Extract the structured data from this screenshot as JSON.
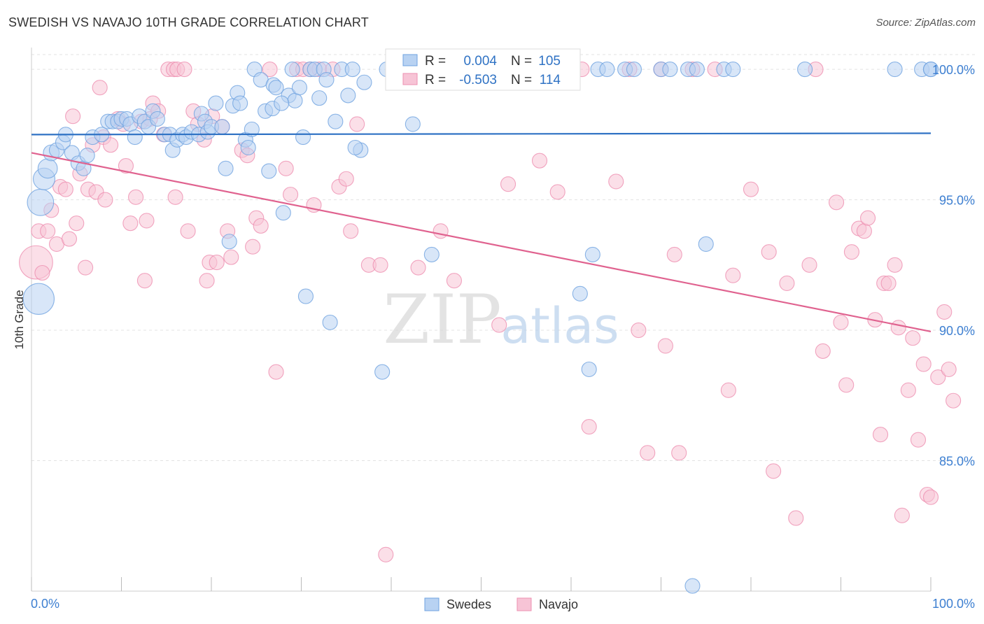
{
  "title": "SWEDISH VS NAVAJO 10TH GRADE CORRELATION CHART",
  "source": "Source: ZipAtlas.com",
  "watermark": {
    "zip": "ZIP",
    "atlas": "atlas"
  },
  "chart_data": {
    "type": "scatter",
    "title": "SWEDISH VS NAVAJO 10TH GRADE CORRELATION CHART",
    "xlabel": "",
    "ylabel": "10th Grade",
    "xlim": [
      0,
      100
    ],
    "ylim": [
      80.0,
      100.7
    ],
    "x_tick_labels": [
      "0.0%",
      "100.0%"
    ],
    "y_ticks": [
      85,
      90,
      95,
      100
    ],
    "y_tick_labels": [
      "85.0%",
      "90.0%",
      "95.0%",
      "100.0%"
    ],
    "grid": true,
    "legend_position": "top-center",
    "stats": [
      {
        "r_label": "R =",
        "r_value": "0.004",
        "n_label": "N =",
        "n_value": "105"
      },
      {
        "r_label": "R =",
        "r_value": "-0.503",
        "n_label": "N =",
        "n_value": "114"
      }
    ],
    "series": [
      {
        "name": "Swedes",
        "color": "#6fa3e0",
        "fill": "#b8d2f2",
        "trend": {
          "x": [
            0,
            100
          ],
          "y": [
            97.5,
            97.55
          ],
          "color": "#2f72c4"
        },
        "points": [
          [
            0.8,
            91.2,
            26
          ],
          [
            1.0,
            94.9,
            22
          ],
          [
            1.4,
            95.8,
            18
          ],
          [
            1.8,
            96.2,
            16
          ],
          [
            2.2,
            96.8,
            13
          ],
          [
            2.8,
            96.9,
            12
          ],
          [
            3.5,
            97.2,
            12
          ],
          [
            3.8,
            97.5,
            12
          ],
          [
            4.5,
            96.8,
            12
          ],
          [
            5.2,
            96.4,
            12
          ],
          [
            5.8,
            96.2,
            12
          ],
          [
            6.2,
            96.7,
            12
          ],
          [
            6.8,
            97.4,
            12
          ],
          [
            7.8,
            97.5,
            12
          ],
          [
            8.5,
            98.0,
            12
          ],
          [
            9.0,
            98.0,
            12
          ],
          [
            9.6,
            98.0,
            12
          ],
          [
            10.0,
            98.1,
            12
          ],
          [
            10.6,
            98.1,
            12
          ],
          [
            11.0,
            97.9,
            12
          ],
          [
            11.5,
            97.4,
            12
          ],
          [
            12.0,
            98.2,
            12
          ],
          [
            12.6,
            98.0,
            12
          ],
          [
            13.0,
            97.8,
            12
          ],
          [
            13.5,
            98.4,
            12
          ],
          [
            14.0,
            98.1,
            12
          ],
          [
            14.8,
            97.5,
            12
          ],
          [
            15.4,
            97.5,
            12
          ],
          [
            15.7,
            96.9,
            12
          ],
          [
            16.2,
            97.3,
            12
          ],
          [
            16.8,
            97.5,
            12
          ],
          [
            17.2,
            97.4,
            12
          ],
          [
            17.8,
            97.6,
            12
          ],
          [
            18.6,
            97.5,
            12
          ],
          [
            18.9,
            98.3,
            12
          ],
          [
            19.3,
            98.0,
            12
          ],
          [
            19.6,
            97.6,
            12
          ],
          [
            20.0,
            97.8,
            12
          ],
          [
            20.5,
            98.7,
            12
          ],
          [
            21.2,
            97.8,
            12
          ],
          [
            21.6,
            96.2,
            12
          ],
          [
            22.0,
            93.4,
            12
          ],
          [
            22.4,
            98.6,
            12
          ],
          [
            22.9,
            99.1,
            12
          ],
          [
            23.2,
            98.7,
            12
          ],
          [
            23.8,
            97.3,
            12
          ],
          [
            24.1,
            97.0,
            12
          ],
          [
            24.5,
            97.7,
            12
          ],
          [
            24.8,
            100.0,
            12
          ],
          [
            25.5,
            99.6,
            12
          ],
          [
            26.0,
            98.4,
            12
          ],
          [
            26.4,
            96.1,
            12
          ],
          [
            26.9,
            99.4,
            12
          ],
          [
            27.2,
            99.3,
            12
          ],
          [
            28.0,
            94.5,
            12
          ],
          [
            28.6,
            99.0,
            12
          ],
          [
            29.0,
            100.0,
            12
          ],
          [
            29.3,
            98.8,
            12
          ],
          [
            29.8,
            99.3,
            12
          ],
          [
            30.5,
            91.3,
            12
          ],
          [
            31.0,
            100.0,
            12
          ],
          [
            31.5,
            100.0,
            12
          ],
          [
            32.0,
            98.9,
            12
          ],
          [
            32.5,
            100.0,
            12
          ],
          [
            32.8,
            99.6,
            12
          ],
          [
            33.2,
            90.3,
            12
          ],
          [
            33.8,
            98.0,
            12
          ],
          [
            34.5,
            100.0,
            12
          ],
          [
            35.2,
            99.0,
            12
          ],
          [
            35.7,
            100.0,
            12
          ],
          [
            36.6,
            96.9,
            12
          ],
          [
            37.0,
            99.5,
            12
          ],
          [
            39.0,
            88.4,
            12
          ],
          [
            39.5,
            100.0,
            12
          ],
          [
            40.5,
            100.0,
            12
          ],
          [
            41.2,
            100.0,
            12
          ],
          [
            42.0,
            100.0,
            12
          ],
          [
            42.4,
            97.9,
            12
          ],
          [
            43.8,
            100.0,
            12
          ],
          [
            44.5,
            92.9,
            12
          ],
          [
            47.0,
            100.0,
            12
          ],
          [
            48.5,
            100.0,
            12
          ],
          [
            49.0,
            100.0,
            12
          ],
          [
            50.0,
            100.0,
            12
          ],
          [
            52.0,
            100.0,
            12
          ],
          [
            53.0,
            100.0,
            12
          ],
          [
            56.5,
            100.0,
            12
          ],
          [
            58.0,
            100.0,
            12
          ],
          [
            60.0,
            100.0,
            12
          ],
          [
            61.0,
            91.4,
            12
          ],
          [
            62.0,
            88.5,
            12
          ],
          [
            62.4,
            92.9,
            12
          ],
          [
            63.0,
            100.0,
            12
          ],
          [
            64.0,
            100.0,
            12
          ],
          [
            66.0,
            100.0,
            12
          ],
          [
            67.0,
            100.0,
            12
          ],
          [
            70.0,
            100.0,
            12
          ],
          [
            71.0,
            100.0,
            12
          ],
          [
            73.0,
            100.0,
            12
          ],
          [
            74.0,
            100.0,
            12
          ],
          [
            75.0,
            93.3,
            12
          ],
          [
            77.0,
            100.0,
            12
          ],
          [
            78.0,
            100.0,
            12
          ],
          [
            86.0,
            100.0,
            12
          ],
          [
            96.0,
            100.0,
            12
          ],
          [
            99.0,
            100.0,
            12
          ],
          [
            100.0,
            100.0,
            12
          ],
          [
            36.0,
            97.0,
            12
          ],
          [
            26.8,
            98.5,
            12
          ],
          [
            30.2,
            97.4,
            12
          ],
          [
            27.8,
            98.7,
            12
          ],
          [
            100.0,
            100.0,
            12
          ],
          [
            73.5,
            80.2,
            12
          ]
        ]
      },
      {
        "name": "Navajo",
        "color": "#ee8fb0",
        "fill": "#f7c4d6",
        "trend": {
          "x": [
            0,
            100
          ],
          "y": [
            96.8,
            89.95
          ],
          "color": "#e0628f"
        },
        "points": [
          [
            0.5,
            92.6,
            28
          ],
          [
            0.8,
            93.8,
            12
          ],
          [
            1.2,
            92.2,
            12
          ],
          [
            1.8,
            93.8,
            12
          ],
          [
            2.2,
            94.6,
            12
          ],
          [
            2.8,
            93.3,
            12
          ],
          [
            3.2,
            95.5,
            12
          ],
          [
            3.8,
            95.4,
            12
          ],
          [
            4.2,
            93.5,
            12
          ],
          [
            4.6,
            98.2,
            12
          ],
          [
            5.0,
            94.1,
            12
          ],
          [
            5.4,
            96.0,
            12
          ],
          [
            6.0,
            92.4,
            12
          ],
          [
            6.3,
            95.4,
            12
          ],
          [
            6.8,
            97.1,
            12
          ],
          [
            7.2,
            95.3,
            12
          ],
          [
            7.6,
            99.3,
            12
          ],
          [
            8.0,
            97.4,
            12
          ],
          [
            8.2,
            95.0,
            12
          ],
          [
            8.8,
            97.1,
            12
          ],
          [
            9.6,
            98.1,
            12
          ],
          [
            10.2,
            97.9,
            12
          ],
          [
            10.5,
            96.3,
            12
          ],
          [
            11.0,
            94.1,
            12
          ],
          [
            11.6,
            95.1,
            12
          ],
          [
            12.2,
            98.0,
            12
          ],
          [
            12.6,
            91.9,
            12
          ],
          [
            12.8,
            94.2,
            12
          ],
          [
            13.2,
            98.1,
            12
          ],
          [
            13.5,
            98.7,
            12
          ],
          [
            14.1,
            98.4,
            12
          ],
          [
            14.7,
            97.5,
            12
          ],
          [
            15.2,
            100.0,
            12
          ],
          [
            15.8,
            100.0,
            12
          ],
          [
            16.0,
            95.1,
            12
          ],
          [
            16.2,
            100.0,
            12
          ],
          [
            17.0,
            100.0,
            12
          ],
          [
            17.4,
            93.8,
            12
          ],
          [
            18.0,
            98.4,
            12
          ],
          [
            18.5,
            97.9,
            12
          ],
          [
            19.2,
            97.3,
            12
          ],
          [
            19.5,
            91.9,
            12
          ],
          [
            19.8,
            92.6,
            12
          ],
          [
            20.1,
            98.2,
            12
          ],
          [
            20.6,
            92.6,
            12
          ],
          [
            21.2,
            97.8,
            12
          ],
          [
            21.8,
            93.8,
            12
          ],
          [
            22.2,
            92.8,
            12
          ],
          [
            23.4,
            96.9,
            12
          ],
          [
            24.0,
            96.7,
            12
          ],
          [
            24.6,
            93.2,
            12
          ],
          [
            25.0,
            94.3,
            12
          ],
          [
            25.5,
            94.0,
            12
          ],
          [
            26.5,
            100.0,
            12
          ],
          [
            27.2,
            88.4,
            12
          ],
          [
            28.3,
            96.2,
            12
          ],
          [
            28.8,
            95.2,
            12
          ],
          [
            29.5,
            100.0,
            12
          ],
          [
            30.2,
            100.0,
            12
          ],
          [
            31.0,
            100.0,
            12
          ],
          [
            31.4,
            94.8,
            12
          ],
          [
            32.0,
            100.0,
            12
          ],
          [
            33.5,
            100.0,
            12
          ],
          [
            34.2,
            95.5,
            12
          ],
          [
            35.0,
            95.8,
            12
          ],
          [
            35.5,
            93.8,
            12
          ],
          [
            36.2,
            97.9,
            12
          ],
          [
            37.5,
            92.5,
            12
          ],
          [
            38.8,
            92.5,
            12
          ],
          [
            39.4,
            81.4,
            12
          ],
          [
            40.6,
            100.0,
            12
          ],
          [
            43.0,
            92.4,
            12
          ],
          [
            45.5,
            93.8,
            12
          ],
          [
            47.0,
            91.9,
            12
          ],
          [
            52.0,
            90.2,
            12
          ],
          [
            53.0,
            95.6,
            12
          ],
          [
            56.5,
            96.5,
            12
          ],
          [
            58.5,
            95.3,
            12
          ],
          [
            61.2,
            100.0,
            12
          ],
          [
            62.0,
            86.3,
            12
          ],
          [
            65.0,
            95.7,
            12
          ],
          [
            66.5,
            100.0,
            12
          ],
          [
            67.5,
            90.0,
            12
          ],
          [
            68.5,
            85.3,
            12
          ],
          [
            70.0,
            100.0,
            12
          ],
          [
            70.5,
            89.4,
            12
          ],
          [
            71.5,
            92.9,
            12
          ],
          [
            72.0,
            85.3,
            12
          ],
          [
            73.5,
            100.0,
            12
          ],
          [
            76.0,
            100.0,
            12
          ],
          [
            77.5,
            87.7,
            12
          ],
          [
            78.0,
            92.1,
            12
          ],
          [
            80.0,
            95.4,
            12
          ],
          [
            82.0,
            93.0,
            12
          ],
          [
            82.5,
            84.6,
            12
          ],
          [
            84.0,
            91.8,
            12
          ],
          [
            85.0,
            82.8,
            12
          ],
          [
            86.5,
            92.5,
            12
          ],
          [
            87.2,
            100.0,
            12
          ],
          [
            88.0,
            89.2,
            12
          ],
          [
            89.5,
            94.9,
            12
          ],
          [
            90.0,
            90.3,
            12
          ],
          [
            90.6,
            87.9,
            12
          ],
          [
            91.2,
            93.0,
            12
          ],
          [
            92.0,
            93.9,
            12
          ],
          [
            92.6,
            93.8,
            12
          ],
          [
            93.0,
            94.3,
            12
          ],
          [
            93.8,
            90.4,
            12
          ],
          [
            94.4,
            86.0,
            12
          ],
          [
            94.8,
            91.8,
            12
          ],
          [
            95.3,
            91.8,
            12
          ],
          [
            96.0,
            92.5,
            12
          ],
          [
            96.4,
            90.1,
            12
          ],
          [
            96.8,
            82.9,
            12
          ],
          [
            97.5,
            87.7,
            12
          ],
          [
            98.0,
            89.7,
            12
          ],
          [
            98.6,
            85.8,
            12
          ],
          [
            99.2,
            88.7,
            12
          ],
          [
            99.6,
            83.7,
            12
          ],
          [
            100.0,
            83.6,
            12
          ],
          [
            100.8,
            88.2,
            12
          ],
          [
            101.5,
            90.7,
            12
          ],
          [
            102.0,
            88.5,
            12
          ],
          [
            102.5,
            87.3,
            12
          ]
        ]
      }
    ]
  }
}
